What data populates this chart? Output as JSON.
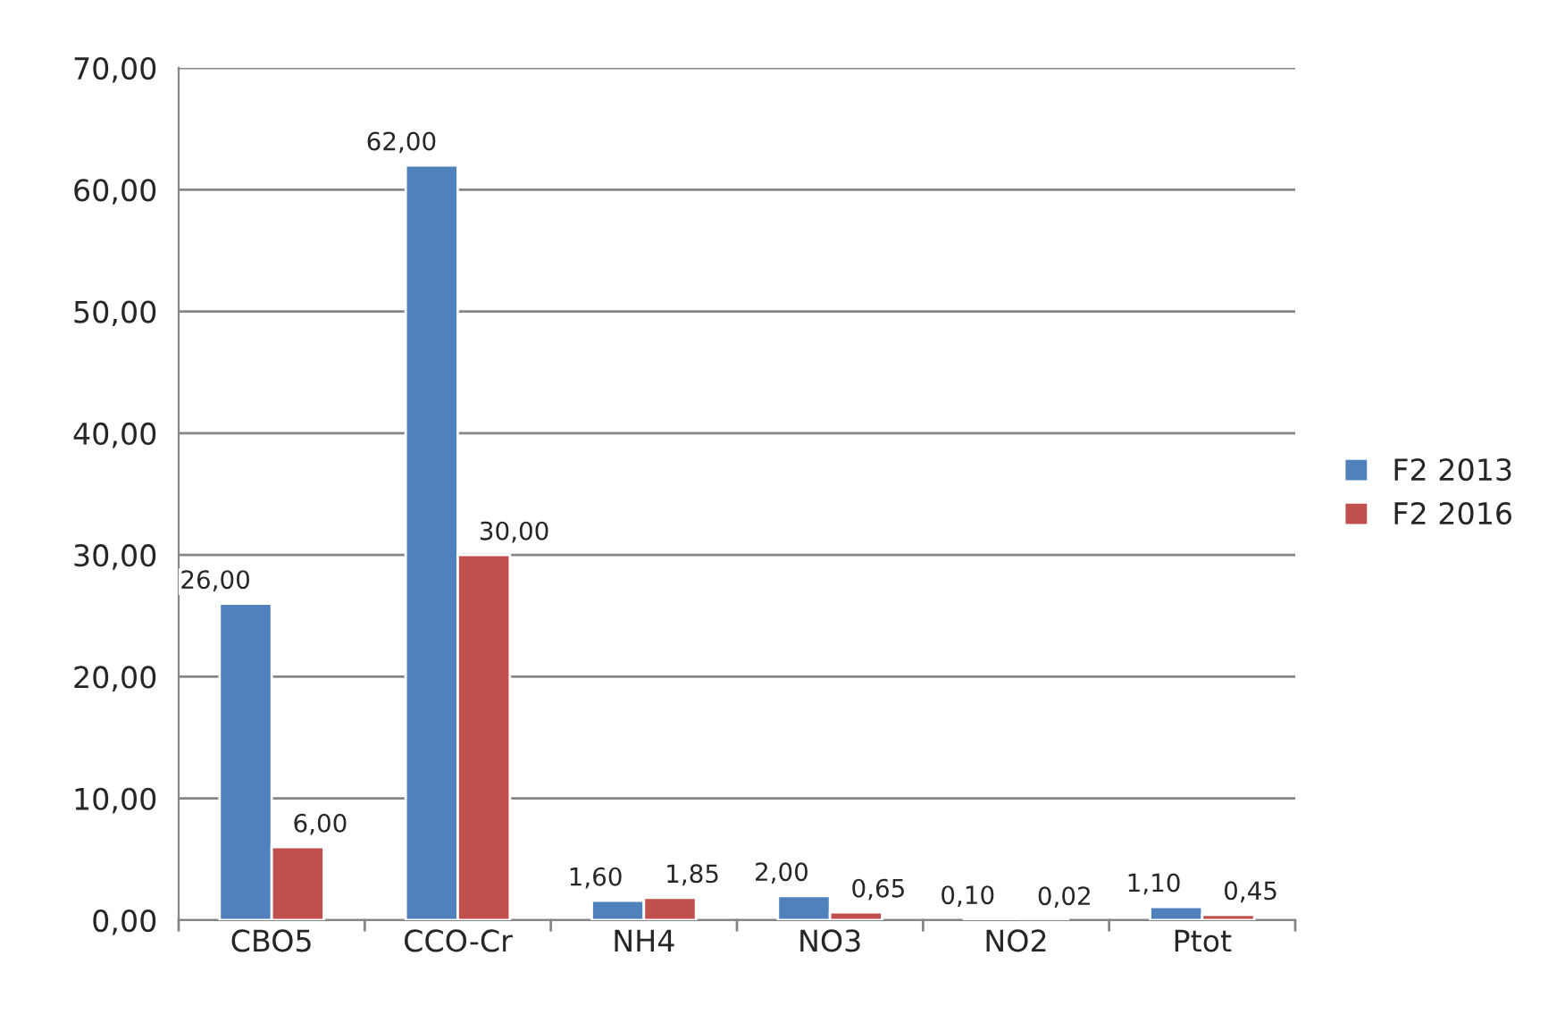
{
  "chart_data": {
    "type": "bar",
    "categories": [
      "CBO5",
      "CCO-Cr",
      "NH4",
      "NO3",
      "NO2",
      "Ptot"
    ],
    "series": [
      {
        "name": "F2 2013",
        "color": "#4f81bd",
        "values": [
          26.0,
          62.0,
          1.6,
          2.0,
          0.1,
          1.1
        ],
        "value_labels": [
          "26,00",
          "62,00",
          "1,60",
          "2,00",
          "0,10",
          "1,10"
        ]
      },
      {
        "name": "F2 2016",
        "color": "#c0504d",
        "values": [
          6.0,
          30.0,
          1.85,
          0.65,
          0.02,
          0.45
        ],
        "value_labels": [
          "6,00",
          "30,00",
          "1,85",
          "0,65",
          "0,02",
          "0,45"
        ]
      }
    ],
    "ylim": [
      0,
      70
    ],
    "yticks": [
      {
        "value": 0,
        "label": "0,00"
      },
      {
        "value": 10,
        "label": "10,00"
      },
      {
        "value": 20,
        "label": "20,00"
      },
      {
        "value": 30,
        "label": "30,00"
      },
      {
        "value": 40,
        "label": "40,00"
      },
      {
        "value": 50,
        "label": "50,00"
      },
      {
        "value": 60,
        "label": "60,00"
      },
      {
        "value": 70,
        "label": "70,00"
      }
    ],
    "grid": "y",
    "legend": "right"
  }
}
